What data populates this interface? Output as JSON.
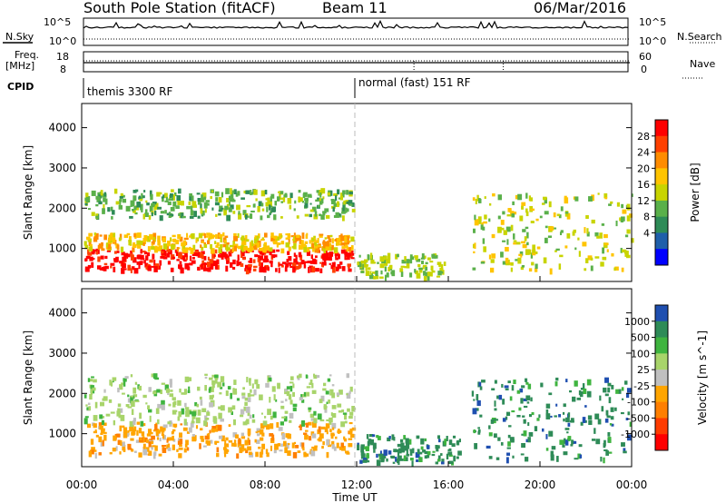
{
  "header": {
    "station": "South Pole Station (fitACF)",
    "beam": "Beam 11",
    "date": "06/Mar/2016"
  },
  "top_panels": {
    "nsky_label": "N.Sky",
    "nsky_ticks": [
      "10^5",
      "10^0"
    ],
    "nsearch_label": "N.Search",
    "nsearch_ticks": [
      "10^5",
      "10^0"
    ],
    "freq_label_1": "Freq.",
    "freq_label_2": "[MHz]",
    "freq_ticks": [
      "18",
      "8"
    ],
    "nave_label": "Nave",
    "nave_ticks": [
      "60",
      "0"
    ],
    "cpid_label": "CPID",
    "cpid_segments": [
      {
        "label": "themis 3300 RF",
        "start_hour": 0
      },
      {
        "label": "normal (fast) 151 RF",
        "start_hour": 12
      }
    ]
  },
  "time_axis": {
    "label": "Time UT",
    "ticks": [
      "00:00",
      "04:00",
      "08:00",
      "12:00",
      "16:00",
      "20:00",
      "00:00"
    ],
    "range_hours": [
      0,
      24
    ]
  },
  "chart_data": [
    {
      "type": "heatmap",
      "panel": "power",
      "ylabel": "Slant Range [km]",
      "ylim": [
        180,
        4600
      ],
      "yticks": [
        1000,
        2000,
        3000,
        4000
      ],
      "colorbar_label": "Power [dB]",
      "colorbar_ticks": [
        "28",
        "24",
        "20",
        "16",
        "12",
        "8",
        "4"
      ],
      "colorbar_colors": [
        "#ff0000",
        "#ff4000",
        "#ff8c00",
        "#ffc400",
        "#c8d400",
        "#5ab04a",
        "#2e8b57",
        "#1f5faa",
        "#0000ff"
      ],
      "echo_regions": [
        {
          "t_start": 0.1,
          "t_end": 11.8,
          "r_start": 500,
          "r_end": 1000,
          "level": 28
        },
        {
          "t_start": 0.1,
          "t_end": 11.8,
          "r_start": 1000,
          "r_end": 1400,
          "level": 16
        },
        {
          "t_start": 0.1,
          "t_end": 11.8,
          "r_start": 1800,
          "r_end": 2500,
          "level": 8
        },
        {
          "t_start": 12.0,
          "t_end": 15.8,
          "r_start": 300,
          "r_end": 900,
          "level": 10
        },
        {
          "t_start": 17.0,
          "t_end": 24.0,
          "r_start": 500,
          "r_end": 2400,
          "level": 12
        }
      ]
    },
    {
      "type": "heatmap",
      "panel": "velocity",
      "ylabel": "Slant Range [km]",
      "ylim": [
        180,
        4600
      ],
      "yticks": [
        1000,
        2000,
        3000,
        4000
      ],
      "colorbar_label": "Velocity [m s^-1]",
      "colorbar_ticks": [
        "1000",
        "500",
        "100",
        "25",
        "-25",
        "-100",
        "-500",
        "-1000"
      ],
      "colorbar_colors": [
        "#1f4fb0",
        "#2e8b57",
        "#3fb43f",
        "#a8d46a",
        "#c0c0c0",
        "#ffa500",
        "#ff7f00",
        "#ff3c00",
        "#ff0000"
      ],
      "echo_regions": [
        {
          "t_start": 0.1,
          "t_end": 11.8,
          "r_start": 500,
          "r_end": 1300,
          "level": -200
        },
        {
          "t_start": 0.1,
          "t_end": 11.8,
          "r_start": 1300,
          "r_end": 2500,
          "level": 0
        },
        {
          "t_start": 12.0,
          "t_end": 16.5,
          "r_start": 300,
          "r_end": 1000,
          "level": 150
        },
        {
          "t_start": 17.0,
          "t_end": 24.0,
          "r_start": 400,
          "r_end": 2400,
          "level": 150
        }
      ]
    }
  ]
}
